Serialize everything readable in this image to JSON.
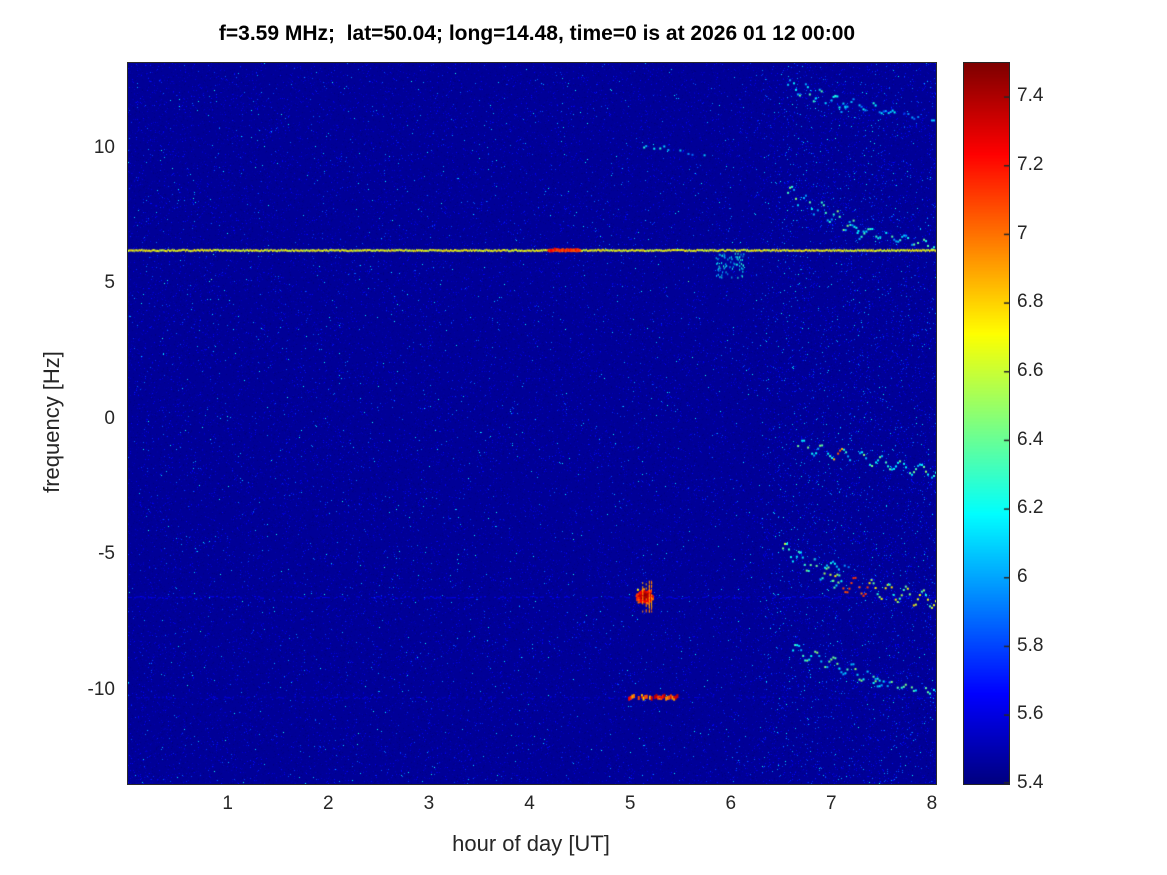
{
  "chart_data": {
    "type": "heatmap",
    "title": "f=3.59 MHz;  lat=50.04; long=14.48, time=0 is at 2026 01 12 00:00",
    "xlabel": "hour of day [UT]",
    "ylabel": "frequency [Hz]",
    "x_range": [
      0,
      8.03
    ],
    "y_range": [
      -13.4,
      13.2
    ],
    "x_ticks": [
      1,
      2,
      3,
      4,
      5,
      6,
      7,
      8
    ],
    "y_ticks": [
      10,
      5,
      0,
      -5,
      -10
    ],
    "grid": false,
    "legend": "none",
    "colorbar": {
      "position": "right",
      "colormap": "jet",
      "min": 5.4,
      "max": 7.5,
      "ticks": [
        7.4,
        7.2,
        7.0,
        6.8,
        6.6,
        6.4,
        6.2,
        6.0,
        5.8,
        5.6,
        5.4
      ],
      "tick_labels": [
        "7.4",
        "7.2",
        "7",
        "6.8",
        "6.6",
        "6.4",
        "6.2",
        "6",
        "5.8",
        "5.6",
        "5.4"
      ]
    },
    "background_value": 5.45,
    "noise": {
      "density": 0.16,
      "exp_scale": 0.085,
      "sparkle_count": 1400,
      "right_extra": {
        "x1": 6.3,
        "count": 2600,
        "v_min": 5.6,
        "v_spread": 0.65
      }
    },
    "features": {
      "carrier_line": {
        "freq": 6.32,
        "x_start": 0,
        "x_end": 8.03,
        "v_base": 6.55,
        "v_spread": 0.25,
        "hot_segment": {
          "x1": 4.17,
          "x2": 4.48,
          "v": 7.05
        }
      },
      "faint_lines": [
        {
          "freq": -6.5,
          "v": 5.62,
          "gap": 0.45
        },
        {
          "freq": -10.2,
          "v": 5.58,
          "gap": 0.6
        }
      ],
      "blobs": [
        {
          "style": "gauss",
          "x": 5.13,
          "freq": -6.45,
          "x_spread": 0.1,
          "f_spread": 0.3,
          "points": 450,
          "v_core": 7.45,
          "v_edge": 6.6
        },
        {
          "style": "dashed-bar",
          "x": 5.21,
          "freq": -10.2,
          "half_width": 0.24,
          "half_height": 0.1,
          "v": 7.0
        },
        {
          "style": "scatter",
          "x": 5.98,
          "freq": 5.75,
          "x_spread": 0.14,
          "f_spread": 0.45,
          "points": 70,
          "v_base": 5.95,
          "v_spread": 0.35
        }
      ],
      "traces": [
        {
          "x1": 5.12,
          "x2": 5.44,
          "f1": 10.15,
          "f2": 10.0,
          "amp": 0.07,
          "cycles": 2,
          "gap": 0.35,
          "v_base": 5.9,
          "v_spread": 0.4
        },
        {
          "x1": 5.46,
          "x2": 5.78,
          "f1": 9.95,
          "f2": 9.8,
          "amp": 0.05,
          "cycles": 2,
          "gap": 0.5,
          "v_base": 5.85,
          "v_spread": 0.35
        },
        {
          "x1": 6.55,
          "x2": 7.12,
          "f1": 12.45,
          "f2": 11.6,
          "amp": 0.25,
          "cycles": 4,
          "gap": 0.3,
          "v_base": 5.9,
          "v_spread": 0.5
        },
        {
          "x1": 7.0,
          "x2": 7.52,
          "f1": 11.9,
          "f2": 11.5,
          "amp": 0.15,
          "cycles": 3,
          "gap": 0.45,
          "v_base": 5.85,
          "v_spread": 0.45
        },
        {
          "x1": 7.55,
          "x2": 8.0,
          "f1": 11.4,
          "f2": 11.15,
          "amp": 0.1,
          "cycles": 3,
          "gap": 0.5,
          "v_base": 5.8,
          "v_spread": 0.4
        },
        {
          "x1": 6.55,
          "x2": 7.3,
          "f1": 8.45,
          "f2": 7.0,
          "amp": 0.3,
          "cycles": 5,
          "gap": 0.25,
          "v_base": 5.95,
          "v_spread": 0.55
        },
        {
          "x1": 7.15,
          "x2": 8.02,
          "f1": 7.15,
          "f2": 6.5,
          "amp": 0.15,
          "cycles": 5,
          "gap": 0.3,
          "v_base": 5.95,
          "v_spread": 0.5
        },
        {
          "x1": 6.65,
          "x2": 8.02,
          "f1": -0.9,
          "f2": -1.9,
          "amp": 0.22,
          "cycles": 7,
          "gap": 0.2,
          "v_base": 6.0,
          "v_spread": 0.5,
          "hot": {
            "u1": 0.25,
            "u2": 0.32,
            "v": 6.8
          }
        },
        {
          "x1": 6.5,
          "x2": 7.05,
          "f1": -4.7,
          "f2": -5.9,
          "amp": 0.28,
          "cycles": 4,
          "gap": 0.2,
          "v_base": 6.05,
          "v_spread": 0.6
        },
        {
          "x1": 7.0,
          "x2": 8.02,
          "f1": -5.9,
          "f2": -6.6,
          "amp": 0.3,
          "cycles": 6,
          "gap": 0.12,
          "v_base": 6.2,
          "v_spread": 0.6,
          "hot": {
            "u1": 0.08,
            "u2": 0.35,
            "v": 6.95
          }
        },
        {
          "x1": 6.8,
          "x2": 7.25,
          "f1": -5.15,
          "f2": -5.5,
          "amp": 0.12,
          "cycles": 3,
          "gap": 0.5,
          "v_base": 5.9,
          "v_spread": 0.4
        },
        {
          "x1": 6.6,
          "x2": 7.5,
          "f1": -8.4,
          "f2": -9.6,
          "amp": 0.25,
          "cycles": 5,
          "gap": 0.25,
          "v_base": 6.0,
          "v_spread": 0.5
        },
        {
          "x1": 7.4,
          "x2": 8.0,
          "f1": -9.6,
          "f2": -9.9,
          "amp": 0.12,
          "cycles": 4,
          "gap": 0.35,
          "v_base": 6.0,
          "v_spread": 0.45
        }
      ]
    }
  }
}
